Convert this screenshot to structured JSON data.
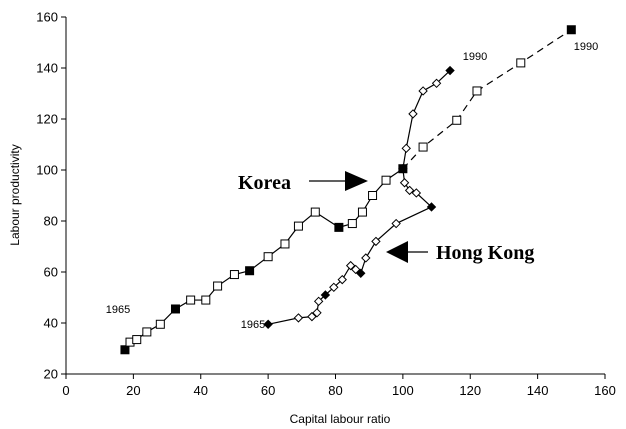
{
  "chart_data": {
    "type": "scatter",
    "title": "",
    "xlabel": "Capital labour ratio",
    "ylabel": "Labour productivity",
    "xlim": [
      0,
      160
    ],
    "ylim": [
      20,
      160
    ],
    "x_ticks": [
      "0",
      "20",
      "40",
      "60",
      "80",
      "100",
      "120",
      "140",
      "160"
    ],
    "y_ticks": [
      "20",
      "40",
      "60",
      "80",
      "100",
      "120",
      "140",
      "160"
    ],
    "grid": false,
    "series": [
      {
        "name": "Korea",
        "line_style": "solid-then-dashed",
        "marker": "square",
        "points": [
          {
            "x": 17.5,
            "y": 29.5,
            "filled": true
          },
          {
            "x": 19,
            "y": 32.5,
            "filled": false
          },
          {
            "x": 21,
            "y": 33.5,
            "filled": false
          },
          {
            "x": 24,
            "y": 36.5,
            "filled": false
          },
          {
            "x": 28,
            "y": 39.5,
            "filled": false
          },
          {
            "x": 32.5,
            "y": 45.5,
            "filled": true
          },
          {
            "x": 37,
            "y": 49,
            "filled": false
          },
          {
            "x": 41.5,
            "y": 49,
            "filled": false
          },
          {
            "x": 45,
            "y": 54.5,
            "filled": false
          },
          {
            "x": 50,
            "y": 59,
            "filled": false
          },
          {
            "x": 54.5,
            "y": 60.5,
            "filled": true
          },
          {
            "x": 60,
            "y": 66,
            "filled": false
          },
          {
            "x": 65,
            "y": 71,
            "filled": false
          },
          {
            "x": 69,
            "y": 78,
            "filled": false
          },
          {
            "x": 74,
            "y": 83.5,
            "filled": false
          },
          {
            "x": 81,
            "y": 77.5,
            "filled": true
          },
          {
            "x": 85,
            "y": 79,
            "filled": false
          },
          {
            "x": 88,
            "y": 83.5,
            "filled": false
          },
          {
            "x": 91,
            "y": 90,
            "filled": false
          },
          {
            "x": 95,
            "y": 96,
            "filled": false
          },
          {
            "x": 100,
            "y": 100.5,
            "filled": true
          },
          {
            "x": 106,
            "y": 109,
            "filled": false
          },
          {
            "x": 116,
            "y": 119.5,
            "filled": false
          },
          {
            "x": 122,
            "y": 131,
            "filled": false
          },
          {
            "x": 135,
            "y": 142,
            "filled": false
          },
          {
            "x": 150,
            "y": 155,
            "filled": true
          }
        ]
      },
      {
        "name": "Hong Kong",
        "line_style": "solid",
        "marker": "diamond",
        "points": [
          {
            "x": 60,
            "y": 39.5,
            "filled": true
          },
          {
            "x": 69,
            "y": 42,
            "filled": false
          },
          {
            "x": 73,
            "y": 42.5,
            "filled": false
          },
          {
            "x": 74.5,
            "y": 44,
            "filled": false
          },
          {
            "x": 75,
            "y": 48.5,
            "filled": false
          },
          {
            "x": 77,
            "y": 51,
            "filled": true
          },
          {
            "x": 79.5,
            "y": 54,
            "filled": false
          },
          {
            "x": 82,
            "y": 57,
            "filled": false
          },
          {
            "x": 84.5,
            "y": 62.5,
            "filled": false
          },
          {
            "x": 86,
            "y": 61,
            "filled": false
          },
          {
            "x": 87.5,
            "y": 59.5,
            "filled": true
          },
          {
            "x": 89,
            "y": 65.5,
            "filled": false
          },
          {
            "x": 92,
            "y": 72,
            "filled": false
          },
          {
            "x": 98,
            "y": 79,
            "filled": false
          },
          {
            "x": 108.5,
            "y": 85.5,
            "filled": true
          },
          {
            "x": 104,
            "y": 91,
            "filled": false
          },
          {
            "x": 102,
            "y": 92,
            "filled": false
          },
          {
            "x": 100.5,
            "y": 95,
            "filled": false
          },
          {
            "x": 100,
            "y": 100.5,
            "filled": true
          },
          {
            "x": 101,
            "y": 108.5,
            "filled": false
          },
          {
            "x": 103,
            "y": 122,
            "filled": false
          },
          {
            "x": 106,
            "y": 131,
            "filled": false
          },
          {
            "x": 110,
            "y": 134,
            "filled": false
          },
          {
            "x": 114,
            "y": 139,
            "filled": true
          }
        ]
      }
    ],
    "annotations": {
      "korea_start_year": "1965",
      "korea_end_year": "1990",
      "hk_start_year": "1965",
      "hk_end_year": "1990",
      "korea_label": "Korea",
      "hk_label": "Hong Kong"
    }
  }
}
